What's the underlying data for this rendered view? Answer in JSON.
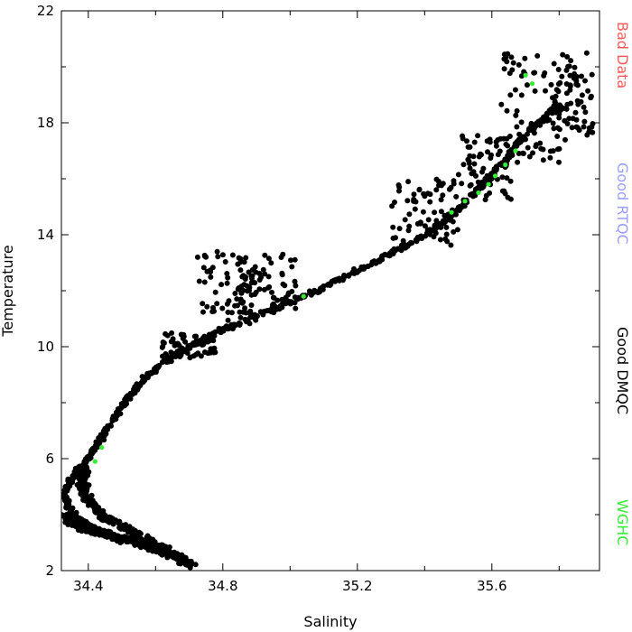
{
  "chart_data": {
    "type": "scatter",
    "xlabel": "Salinity",
    "ylabel": "Temperature",
    "xlim": [
      34.32,
      35.92
    ],
    "ylim": [
      2,
      22
    ],
    "xticks": [
      34.4,
      34.8,
      35.2,
      35.6
    ],
    "xtick_labels": [
      "34.4",
      "34.8",
      "35.2",
      "35.6"
    ],
    "xticks_minor": [
      34.6,
      35.0,
      35.4,
      35.8
    ],
    "yticks": [
      2,
      6,
      10,
      14,
      18,
      22
    ],
    "ytick_labels": [
      "2",
      "6",
      "10",
      "14",
      "18",
      "22"
    ],
    "yticks_minor": [
      4,
      8,
      12,
      16,
      20
    ],
    "grid": false,
    "legend_placement": "right-side vertical",
    "legend": [
      {
        "label": "Bad Data",
        "color": "#ff5a5a"
      },
      {
        "label": "Good RTQC",
        "color": "#9aa0ff"
      },
      {
        "label": "Good DMQC",
        "color": "#000000"
      },
      {
        "label": "WGHC",
        "color": "#33ee33"
      }
    ],
    "series": [
      {
        "name": "Good DMQC",
        "color": "#000000",
        "main_curve": [
          [
            34.71,
            2.2
          ],
          [
            34.62,
            2.7
          ],
          [
            34.52,
            3.1
          ],
          [
            34.42,
            3.5
          ],
          [
            34.36,
            3.9
          ],
          [
            34.34,
            4.3
          ],
          [
            34.33,
            4.8
          ],
          [
            34.35,
            5.3
          ],
          [
            34.38,
            5.7
          ],
          [
            34.41,
            6.2
          ],
          [
            34.44,
            6.8
          ],
          [
            34.48,
            7.5
          ],
          [
            34.52,
            8.2
          ],
          [
            34.57,
            8.9
          ],
          [
            34.63,
            9.5
          ],
          [
            34.7,
            10.0
          ],
          [
            34.78,
            10.5
          ],
          [
            34.88,
            11.0
          ],
          [
            34.98,
            11.5
          ],
          [
            35.08,
            12.0
          ],
          [
            35.18,
            12.6
          ],
          [
            35.28,
            13.2
          ],
          [
            35.36,
            13.7
          ],
          [
            35.44,
            14.3
          ],
          [
            35.5,
            14.9
          ],
          [
            35.56,
            15.6
          ],
          [
            35.62,
            16.4
          ],
          [
            35.68,
            17.3
          ],
          [
            35.74,
            18.0
          ],
          [
            35.8,
            18.6
          ]
        ],
        "lower_branch": [
          [
            34.71,
            2.2
          ],
          [
            34.64,
            2.6
          ],
          [
            34.56,
            2.95
          ],
          [
            34.48,
            3.2
          ],
          [
            34.4,
            3.45
          ],
          [
            34.35,
            3.7
          ],
          [
            34.33,
            4.0
          ]
        ],
        "upper_branch": [
          [
            34.7,
            2.3
          ],
          [
            34.62,
            2.85
          ],
          [
            34.54,
            3.3
          ],
          [
            34.47,
            3.75
          ],
          [
            34.42,
            4.2
          ],
          [
            34.39,
            4.7
          ],
          [
            34.38,
            5.2
          ],
          [
            34.39,
            5.7
          ]
        ],
        "clusters": [
          {
            "x": [
              34.72,
              34.9
            ],
            "y": [
              10.8,
              13.5
            ]
          },
          {
            "x": [
              34.85,
              35.02
            ],
            "y": [
              11.2,
              13.3
            ]
          },
          {
            "x": [
              34.62,
              34.78
            ],
            "y": [
              9.6,
              10.5
            ]
          },
          {
            "x": [
              35.3,
              35.5
            ],
            "y": [
              13.6,
              16.0
            ]
          },
          {
            "x": [
              35.5,
              35.66
            ],
            "y": [
              15.2,
              17.6
            ]
          },
          {
            "x": [
              35.62,
              35.82
            ],
            "y": [
              16.5,
              20.5
            ]
          },
          {
            "x": [
              35.78,
              35.9
            ],
            "y": [
              17.5,
              20.5
            ]
          }
        ]
      },
      {
        "name": "WGHC",
        "color": "#33ee33",
        "points": [
          [
            34.42,
            5.9
          ],
          [
            34.44,
            6.4
          ],
          [
            35.04,
            11.8
          ],
          [
            35.48,
            14.8
          ],
          [
            35.52,
            15.2
          ],
          [
            35.56,
            15.5
          ],
          [
            35.59,
            15.8
          ],
          [
            35.61,
            16.1
          ],
          [
            35.64,
            16.5
          ],
          [
            35.67,
            17.0
          ],
          [
            35.7,
            19.7
          ],
          [
            35.72,
            19.4
          ]
        ]
      }
    ]
  }
}
